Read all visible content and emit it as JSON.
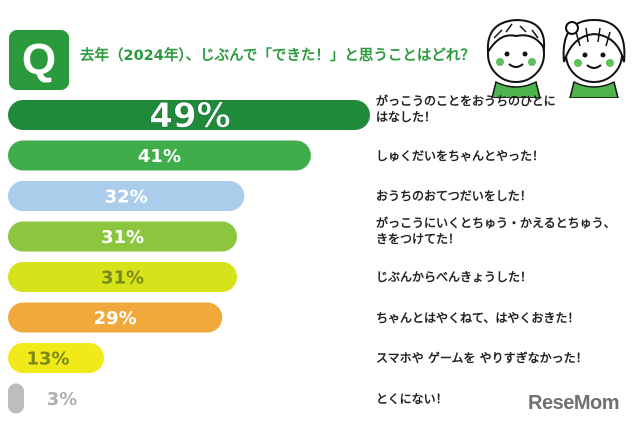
{
  "header": {
    "badge": "Q",
    "question": "去年（2024年）、じぶんで「できた！」と思うことはどれ？"
  },
  "colors": {
    "brand_green": "#2a9a3c"
  },
  "chart_data": {
    "type": "bar",
    "orientation": "horizontal",
    "title": "去年（2024年）、じぶんで「できた！」と思うことはどれ？",
    "unit": "%",
    "xlim": [
      0,
      49
    ],
    "grid": false,
    "legend": "none",
    "categories": [
      "がっこうのことをおうちのひとに\nはなした！",
      "しゅくだいをちゃんとやった！",
      "おうちのおてつだいをした！",
      "がっこうにいくとちゅう・かえるとちゅう、\nきをつけてた！",
      "じぶんからべんきょうした！",
      "ちゃんとはやくねて、はやくおきた！",
      "スマホや ゲームを やりすぎなかった！",
      "とくにない！"
    ],
    "values": [
      49,
      41,
      32,
      31,
      31,
      29,
      13,
      3
    ],
    "value_labels": [
      "49%",
      "41%",
      "32%",
      "31%",
      "31%",
      "29%",
      "13%",
      "3%"
    ],
    "colors": [
      "#1e8a3a",
      "#3fae4a",
      "#a9cdea",
      "#8cc63f",
      "#d6e21a",
      "#f2a93b",
      "#f2ea18",
      "#bdbdbd"
    ]
  },
  "watermark": "ReseMom"
}
